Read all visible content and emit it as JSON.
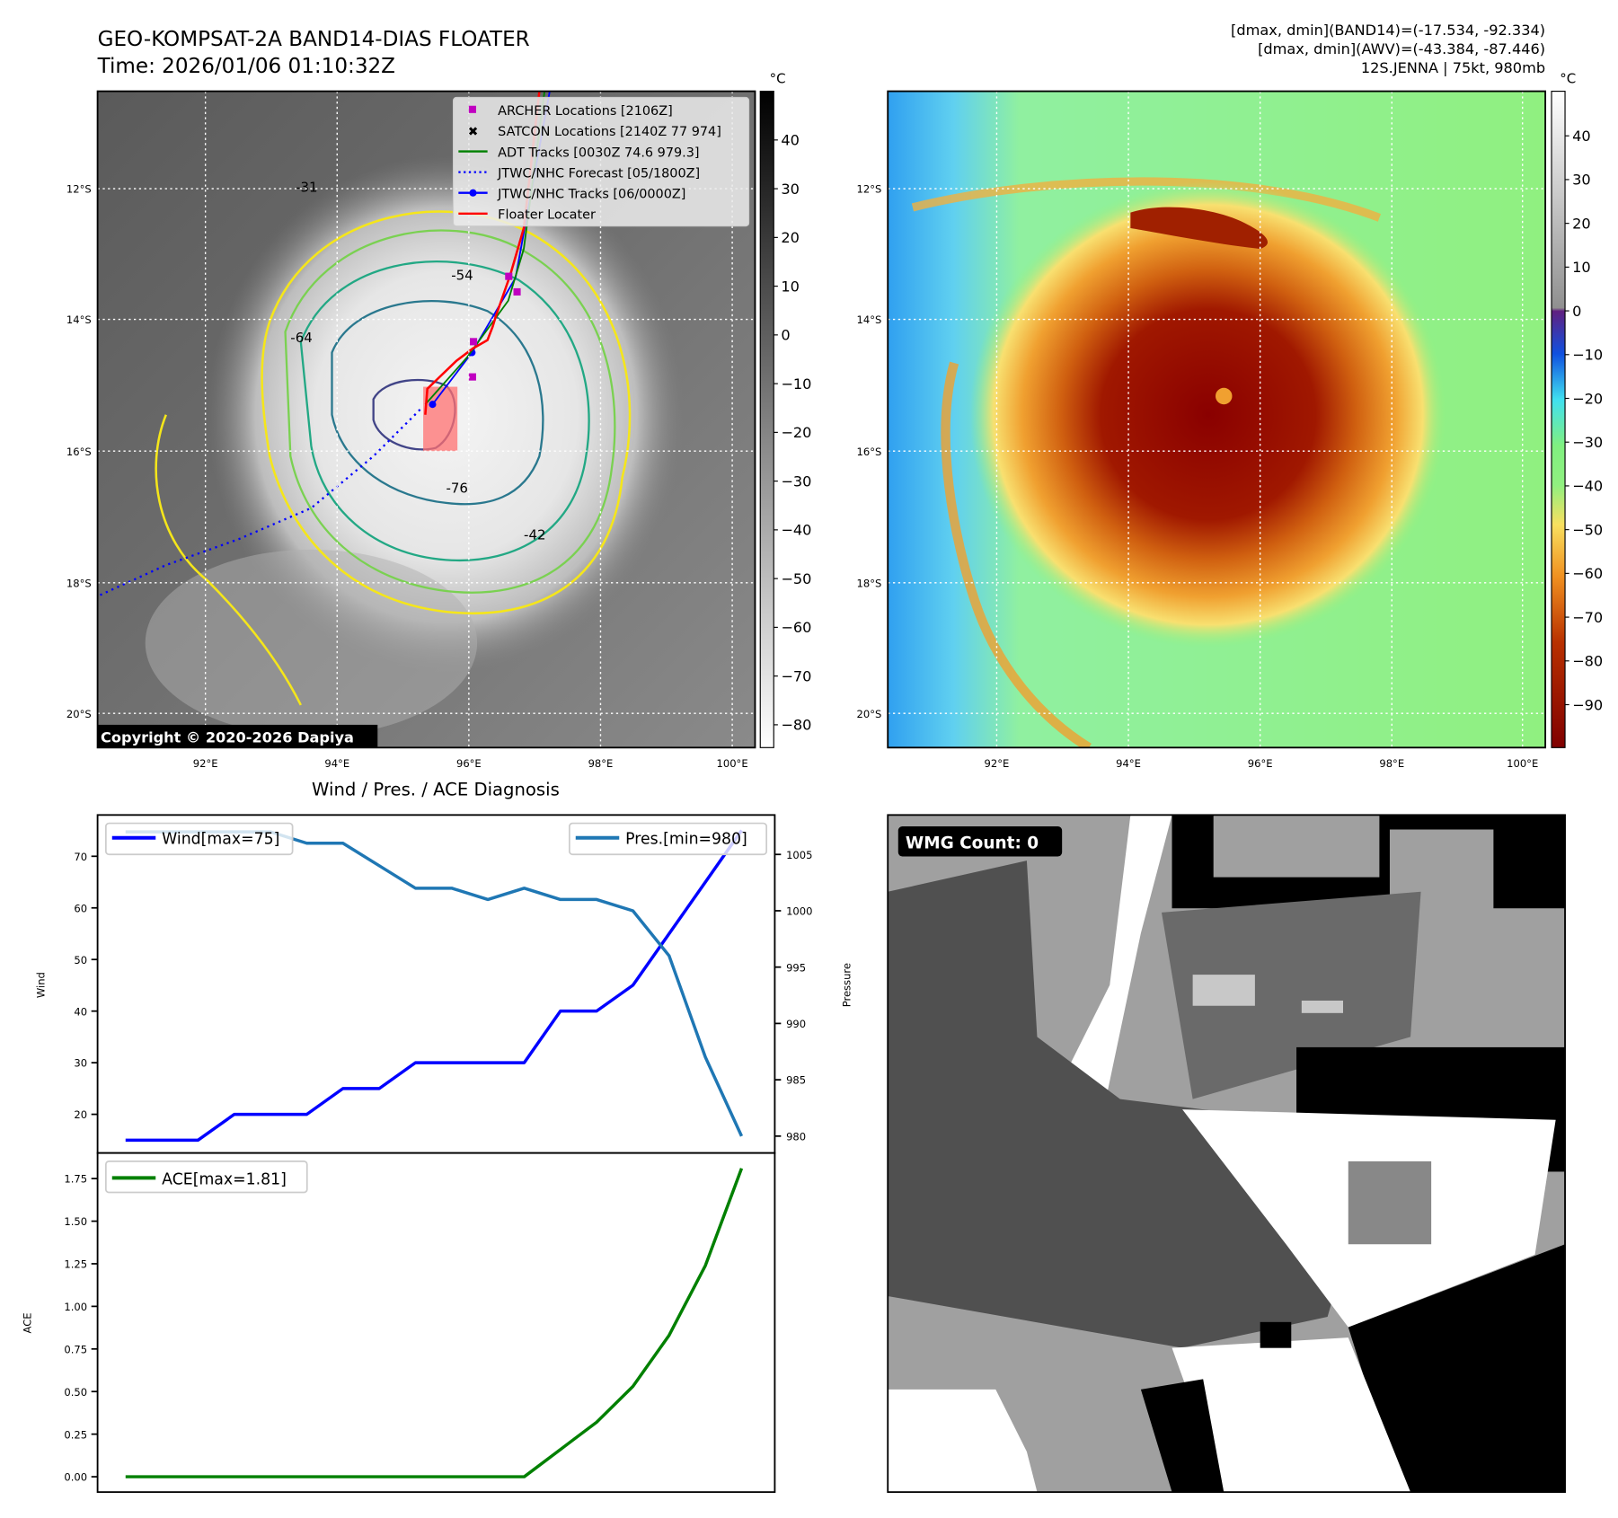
{
  "header": {
    "title_line1": "GEO-KOMPSAT-2A BAND14-DIAS FLOATER",
    "title_line2": "Time: 2026/01/06 01:10:32Z",
    "stats_line1": "[dmax, dmin](BAND14)=(-17.534, -92.334)",
    "stats_line2": "[dmax, dmin](AWV)=(-43.384, -87.446)",
    "stats_line3": "12S.JENNA | 75kt, 980mb"
  },
  "map_axes": {
    "lat_labels": [
      "12°S",
      "14°S",
      "16°S",
      "18°S",
      "20°S"
    ],
    "lon_labels": [
      "92°E",
      "94°E",
      "96°E",
      "98°E",
      "100°E"
    ]
  },
  "left_map": {
    "legend": [
      {
        "label": "ARCHER Locations [2106Z]",
        "color": "#c000c0"
      },
      {
        "label": "SATCON Locations [2140Z 77 974]",
        "color": "#00c0c0"
      },
      {
        "label": "ADT Tracks [0030Z 74.6 979.3]",
        "color": "#008000"
      },
      {
        "label": "JTWC/NHC Forecast [05/1800Z]",
        "color": "#0000ff"
      },
      {
        "label": "JTWC/NHC Tracks [06/0000Z]",
        "color": "#0000ff"
      },
      {
        "label": "Floater Locater",
        "color": "#ff0000"
      }
    ],
    "contour_labels": [
      "-31",
      "-42",
      "-54",
      "-64",
      "-76"
    ],
    "copyright": "Copyright © 2020-2026 Dapiya",
    "colorbar": {
      "unit": "°C",
      "ticks": [
        "40",
        "30",
        "20",
        "10",
        "0",
        "−10",
        "−20",
        "−30",
        "−40",
        "−50",
        "−60",
        "−70",
        "−80"
      ]
    }
  },
  "right_map": {
    "colorbar": {
      "unit": "°C",
      "ticks": [
        "40",
        "30",
        "20",
        "10",
        "0",
        "−10",
        "−20",
        "−30",
        "−40",
        "−50",
        "−60",
        "−70",
        "−80",
        "−90"
      ]
    }
  },
  "wmg": {
    "count_label": "WMG Count: 0"
  },
  "chart_data": [
    {
      "type": "line",
      "title": "Wind / Pres. / ACE Diagnosis",
      "ylabel": "Wind",
      "ylabel_right": "Pressure",
      "x": [
        0,
        1,
        2,
        3,
        4,
        5,
        6,
        7,
        8,
        9,
        10,
        11,
        12,
        13,
        14,
        15,
        16,
        17
      ],
      "series": [
        {
          "name": "Wind[max=75]",
          "axis": "left",
          "color": "#0000ff",
          "values": [
            15,
            15,
            15,
            20,
            20,
            20,
            25,
            25,
            30,
            30,
            30,
            30,
            40,
            40,
            45,
            55,
            65,
            75
          ]
        },
        {
          "name": "Pres.[min=980]",
          "axis": "right",
          "color": "#1f77b4",
          "values": [
            1007,
            1007,
            1007,
            1007,
            1007,
            1006,
            1006,
            1004,
            1002,
            1002,
            1001,
            1002,
            1001,
            1001,
            1000,
            996,
            987,
            980
          ]
        }
      ],
      "yticks": [
        "20",
        "30",
        "40",
        "50",
        "60",
        "70"
      ],
      "yticks_right": [
        "980",
        "985",
        "990",
        "995",
        "1000",
        "1005"
      ],
      "ylim": [
        12.5,
        78
      ],
      "ylim_right": [
        978.5,
        1008.5
      ]
    },
    {
      "type": "line",
      "ylabel": "ACE",
      "x": [
        0,
        1,
        2,
        3,
        4,
        5,
        6,
        7,
        8,
        9,
        10,
        11,
        12,
        13,
        14,
        15,
        16,
        17
      ],
      "series": [
        {
          "name": "ACE[max=1.81]",
          "color": "#008000",
          "values": [
            0,
            0,
            0,
            0,
            0,
            0,
            0,
            0,
            0,
            0,
            0,
            0,
            0.16,
            0.32,
            0.53,
            0.83,
            1.24,
            1.81
          ]
        }
      ],
      "yticks": [
        "0.00",
        "0.25",
        "0.50",
        "0.75",
        "1.00",
        "1.25",
        "1.50",
        "1.75"
      ],
      "ylim": [
        -0.09,
        1.9
      ]
    }
  ]
}
